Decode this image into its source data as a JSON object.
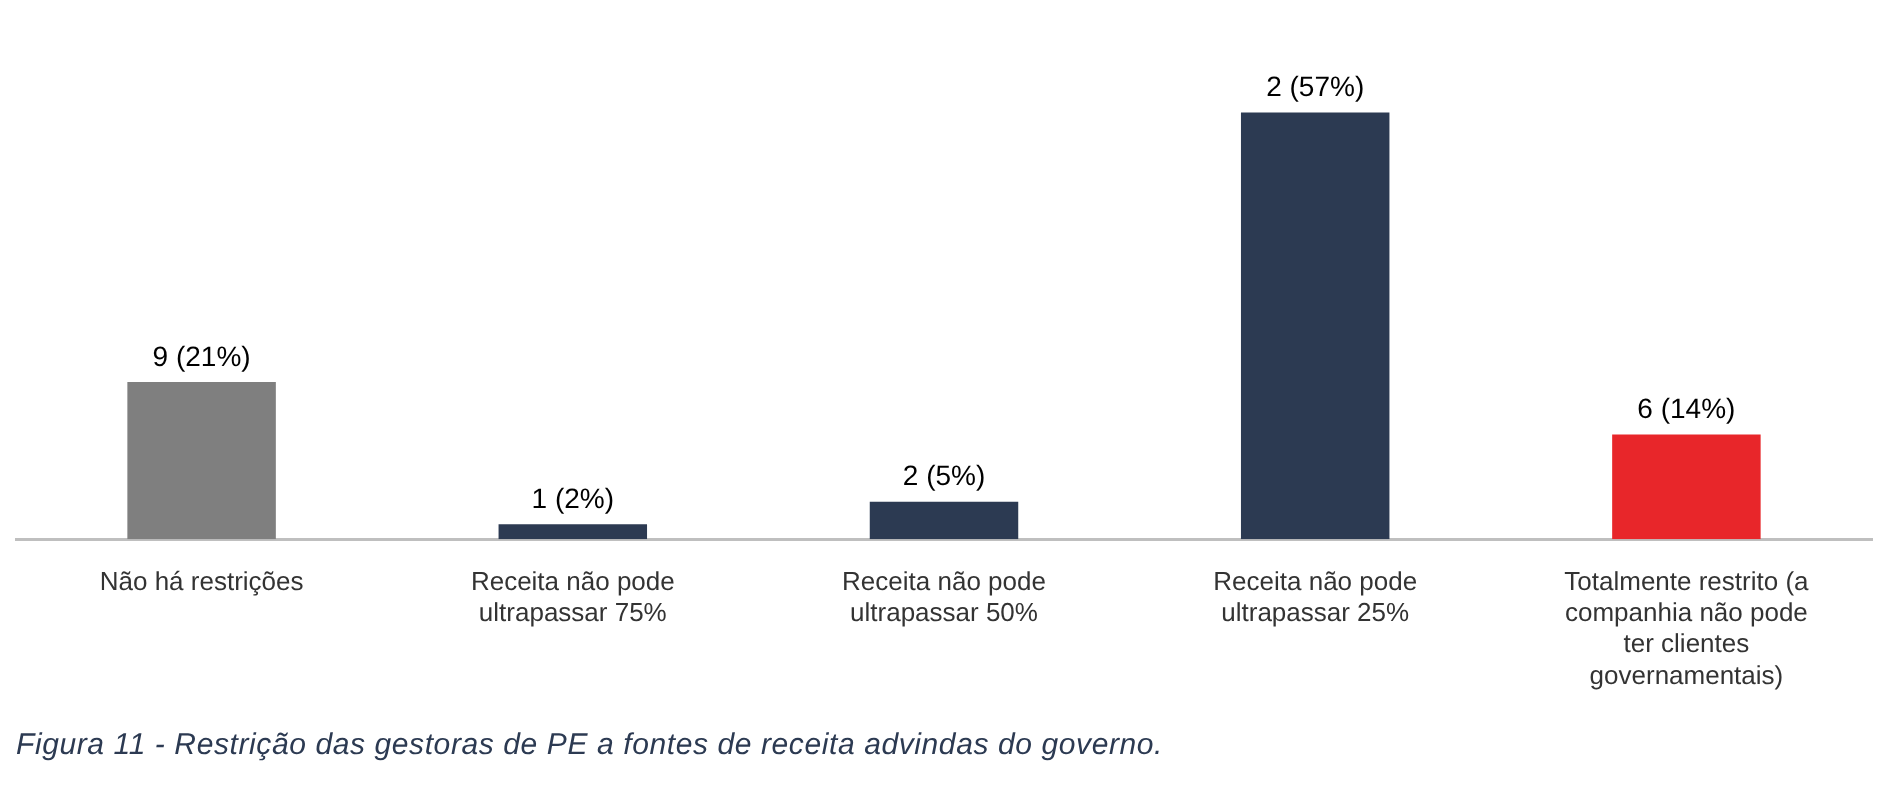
{
  "chart_data": {
    "type": "bar",
    "categories": [
      "Não há restrições",
      "Receita não pode ultrapassar 75%",
      "Receita não pode ultrapassar 50%",
      "Receita não pode ultrapassar 25%",
      "Totalmente restrito (a companhia não pode ter clientes governamentais)"
    ],
    "values": [
      21,
      2,
      5,
      57,
      14
    ],
    "colors": [
      "#7f7f7f",
      "#2c3a52",
      "#2c3a52",
      "#2c3a52",
      "#e8262a"
    ],
    "value_labels": [
      "9 (21%)",
      "1 (2%)",
      "2 (5%)",
      "2 (57%)",
      "6 (14%)"
    ],
    "tick_labels": "x",
    "grid": false,
    "legend": false,
    "annotations": [
      "Figura 11 - Restrição das gestoras de PE a fontes de receita advindas do governo."
    ]
  }
}
